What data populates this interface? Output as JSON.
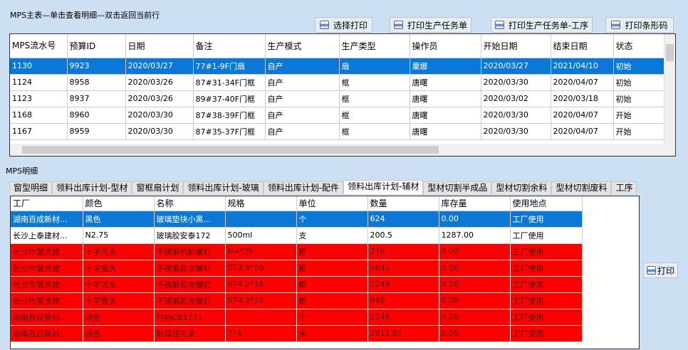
{
  "master": {
    "title": "MPS主表—单击查看明细—双击返回当前行",
    "buttons": [
      "选择打印",
      "打印生产任务单",
      "打印生产任务单-工序",
      "打印条形码"
    ],
    "columns": [
      "MPS流水号",
      "预算ID",
      "日期",
      "备注",
      "生产模式",
      "生产类型",
      "操作员",
      "开始日期",
      "结束日期",
      "状态"
    ],
    "rows": [
      [
        "1130",
        "9923",
        "2020/03/27",
        "77#1-9F门扇",
        "自产",
        "扇",
        "粟娜",
        "2020/03/27",
        "2021/04/10",
        "初始"
      ],
      [
        "1124",
        "8958",
        "2020/03/26",
        "87#31-34F门框",
        "自产",
        "框",
        "唐曙",
        "2020/03/30",
        "2020/04/07",
        "初始"
      ],
      [
        "1123",
        "8937",
        "2020/03/26",
        "89#37-40F门框",
        "自产",
        "框",
        "唐曙",
        "2020/03/02",
        "2020/03/18",
        "初始"
      ],
      [
        "1168",
        "8960",
        "2020/03/30",
        "87#38-39F门框",
        "自产",
        "框",
        "唐曙",
        "2020/03/30",
        "2020/04/07",
        "开始"
      ],
      [
        "1167",
        "8959",
        "2020/03/30",
        "87#35-37F门框",
        "自产",
        "框",
        "唐曙",
        "2020/03/30",
        "2020/04/07",
        "开始"
      ]
    ],
    "selected_row": 0
  },
  "detail": {
    "title": "MPS明细",
    "tabs": [
      "窗型明细",
      "领料出库计划-型材",
      "窗框扇计划",
      "领料出库计划-玻璃",
      "领料出库计划-配件",
      "领料出库计划-辅材",
      "型材切割半成品",
      "型材切割余料",
      "型材切割废料",
      "工序"
    ],
    "active_tab": 5,
    "columns": [
      "工厂",
      "颜色",
      "名称",
      "规格",
      "单位",
      "数量",
      "库存量",
      "使用地点"
    ],
    "rows": [
      [
        "湖南百成新材...",
        "黑色",
        "玻璃垫块小黑...",
        "",
        "个",
        "624",
        "0.00",
        "工厂使用"
      ],
      [
        "长沙上泰建材...",
        "N2.75",
        "玻璃胶安泰172",
        "500ml",
        "支",
        "200.5",
        "1287.00",
        "工厂使用"
      ],
      [
        "长沙市慧虎建...",
        "十字沉头",
        "不锈钢机制螺钉",
        "M4*25",
        "颗",
        "216",
        "0.00",
        "工厂使用"
      ],
      [
        "长沙市慧虎建...",
        "十字盘头",
        "不锈钢自攻螺钉",
        "ST3.9*50",
        "颗",
        "1632",
        "0.00",
        "工厂使用"
      ],
      [
        "长沙市慧虎建...",
        "十字沉头",
        "不锈钢自攻螺钉",
        "ST4.2*16",
        "颗",
        "1248",
        "0.00",
        "工厂使用"
      ],
      [
        "长沙市慧虎建...",
        "十字盘头",
        "不锈钢自攻螺钉",
        "ST4.2*32",
        "颗",
        "840",
        "0.00",
        "工厂使用"
      ],
      [
        "湖南百成新材...",
        "原色",
        "付档CB1771",
        "",
        "个",
        "1248",
        "0.00",
        "工厂使用"
      ],
      [
        "湖南百成新材...",
        "原色",
        "利得佳毛条",
        "7*4",
        "米",
        "2911.81",
        "0.00",
        "工厂使用"
      ]
    ],
    "row_styles": [
      "selected",
      "normal",
      "red",
      "red",
      "red",
      "red",
      "red",
      "red"
    ],
    "print_button": "打印"
  },
  "colors": {
    "background": "#cddff3",
    "selected": "#0b78d7",
    "highlight": "#ff0000"
  }
}
